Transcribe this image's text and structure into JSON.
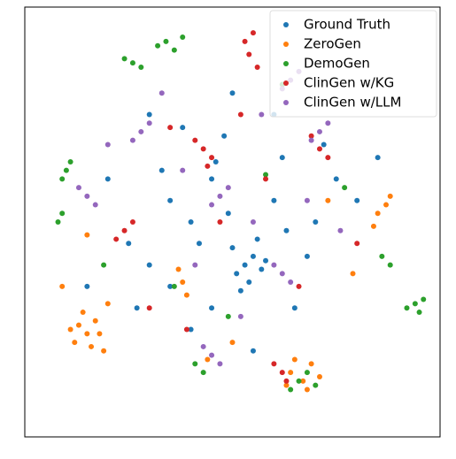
{
  "chart_data": {
    "type": "scatter",
    "xlim": [
      0,
      100
    ],
    "ylim": [
      0,
      100
    ],
    "legend": "upper right",
    "series": [
      {
        "name": "Ground Truth",
        "color": "#1f77b4",
        "x": [
          53,
          55,
          51,
          57,
          54,
          50,
          40,
          45,
          35,
          60,
          62,
          48,
          30,
          25,
          70,
          75,
          80,
          65,
          40,
          55,
          45,
          20,
          30,
          50,
          60,
          85,
          15,
          35,
          68,
          42,
          52,
          56,
          58,
          49,
          33,
          72,
          27,
          63,
          46,
          38
        ],
        "y": [
          40,
          42,
          38,
          39,
          36,
          44,
          50,
          60,
          55,
          55,
          65,
          70,
          40,
          45,
          50,
          60,
          55,
          30,
          25,
          20,
          30,
          60,
          75,
          80,
          75,
          65,
          35,
          35,
          42,
          45,
          34,
          46,
          41,
          52,
          62,
          68,
          30,
          48,
          64,
          72
        ]
      },
      {
        "name": "ZeroGen",
        "color": "#ff7f0e",
        "x": [
          13,
          15,
          17,
          12,
          16,
          14,
          18,
          11,
          19,
          64,
          67,
          69,
          65,
          68,
          71,
          63,
          85,
          87,
          84,
          88,
          38,
          39,
          37,
          9,
          15,
          44,
          79,
          50,
          20,
          73
        ],
        "y": [
          26,
          24,
          27,
          22,
          21,
          29,
          24,
          25,
          20,
          15,
          13,
          17,
          18,
          11,
          14,
          12,
          52,
          54,
          49,
          56,
          36,
          33,
          39,
          35,
          47,
          18,
          38,
          22,
          31,
          55
        ]
      },
      {
        "name": "DemoGen",
        "color": "#2ca02c",
        "x": [
          32,
          34,
          36,
          38,
          26,
          24,
          28,
          10,
          9,
          11,
          94,
          96,
          92,
          95,
          66,
          64,
          68,
          70,
          43,
          41,
          88,
          86,
          9,
          8,
          62,
          58,
          36,
          77,
          49,
          19
        ],
        "y": [
          91,
          92,
          90,
          93,
          87,
          88,
          86,
          62,
          60,
          64,
          31,
          32,
          30,
          29,
          13,
          11,
          15,
          12,
          15,
          17,
          40,
          42,
          52,
          50,
          82,
          61,
          35,
          58,
          28,
          40
        ]
      },
      {
        "name": "ClinGen w/KG",
        "color": "#d62728",
        "x": [
          54,
          53,
          56,
          55,
          43,
          41,
          45,
          44,
          71,
          73,
          69,
          62,
          60,
          63,
          24,
          22,
          26,
          35,
          47,
          80,
          58,
          30,
          66,
          39,
          52
        ],
        "y": [
          89,
          92,
          86,
          94,
          67,
          69,
          65,
          63,
          67,
          65,
          70,
          15,
          17,
          13,
          48,
          46,
          50,
          72,
          50,
          45,
          60,
          30,
          35,
          25,
          75
        ]
      },
      {
        "name": "ClinGen w/LLM",
        "color": "#9467bd",
        "x": [
          64,
          66,
          62,
          71,
          73,
          69,
          47,
          49,
          45,
          28,
          26,
          30,
          45,
          43,
          47,
          62,
          64,
          60,
          15,
          13,
          17,
          38,
          55,
          76,
          33,
          52,
          20,
          57,
          41,
          68
        ],
        "y": [
          83,
          85,
          81,
          71,
          73,
          69,
          56,
          58,
          54,
          71,
          69,
          73,
          19,
          21,
          17,
          38,
          36,
          40,
          56,
          58,
          54,
          62,
          50,
          48,
          80,
          28,
          68,
          75,
          40,
          55
        ]
      }
    ]
  }
}
